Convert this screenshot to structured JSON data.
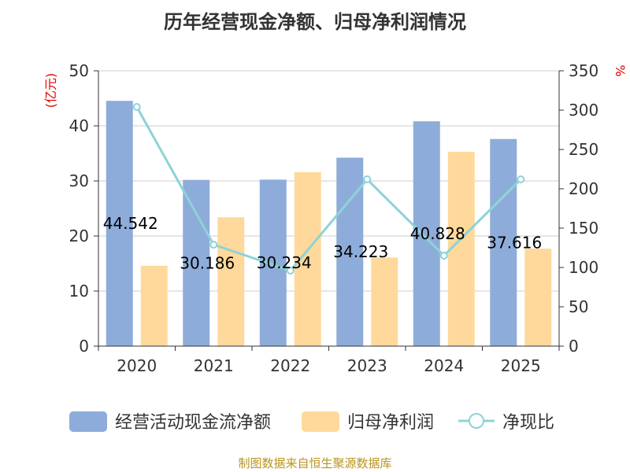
{
  "title": "历年经营现金净额、归母净利润情况",
  "source_note": "制图数据来自恒生聚源数据库",
  "colors": {
    "operating_cash": "#8eacd9",
    "net_profit": "#ffd99b",
    "ratio": "#8dd3d7",
    "unit_label": "#e00000",
    "source": "#b8941f"
  },
  "chart_data": {
    "type": "bar",
    "categories": [
      "2020",
      "2021",
      "2022",
      "2023",
      "2024",
      "2025"
    ],
    "series": [
      {
        "name": "经营活动现金流净额",
        "type": "bar",
        "axis": "left",
        "values": [
          44.542,
          30.186,
          30.234,
          34.223,
          40.828,
          37.616
        ]
      },
      {
        "name": "归母净利润",
        "type": "bar",
        "axis": "left",
        "values": [
          14.6,
          23.4,
          31.6,
          16.1,
          35.3,
          17.7
        ]
      },
      {
        "name": "净现比",
        "type": "line",
        "axis": "right",
        "values": [
          304,
          129,
          96,
          212,
          115,
          212
        ]
      }
    ],
    "data_labels": [
      "44.542",
      "30.186",
      "30.234",
      "34.223",
      "40.828",
      "37.616"
    ],
    "y_left": {
      "label": "(亿元)",
      "min": 0,
      "max": 50,
      "ticks": [
        "0",
        "10",
        "20",
        "30",
        "40",
        "50"
      ]
    },
    "y_right": {
      "label": "%",
      "min": 0,
      "max": 350,
      "ticks": [
        "0",
        "50",
        "100",
        "150",
        "200",
        "250",
        "300",
        "350"
      ]
    },
    "grid": true,
    "legend": "bottom"
  }
}
